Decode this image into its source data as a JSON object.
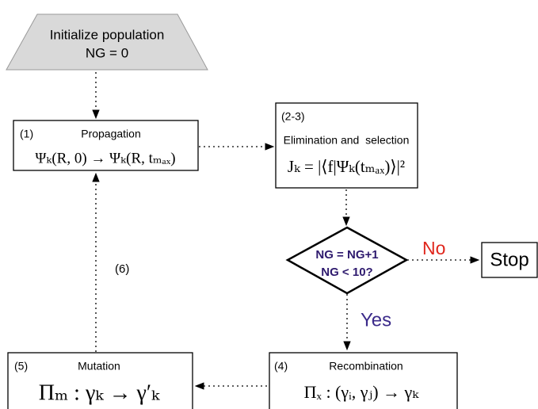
{
  "nodes": [
    {
      "label": [
        "Initialize population",
        "NG = 0"
      ]
    },
    {
      "number": "(1)",
      "label": "Propagation",
      "formula": "Ψₖ(R, 0) → Ψₖ(R, tₘₐₓ)"
    },
    {
      "number": "(2-3)",
      "label": "Elimination and  selection",
      "formula": "Jₖ = |⟨f|Ψₖ(tₘₐₓ)⟩|²"
    },
    {
      "label": [
        "NG = NG+1",
        "NG < 10?"
      ]
    },
    {
      "label": "Stop"
    },
    {
      "number": "(4)",
      "label": "Recombination",
      "formula": "Πₓ : (γᵢ, γⱼ) → γₖ"
    },
    {
      "number": "(5)",
      "label": "Mutation",
      "formula": "Πₘ : γₖ → γ′ₖ"
    }
  ],
  "edges": [
    {
      "label": "No"
    },
    {
      "label": "Yes"
    },
    {
      "label": "(6)"
    }
  ]
}
